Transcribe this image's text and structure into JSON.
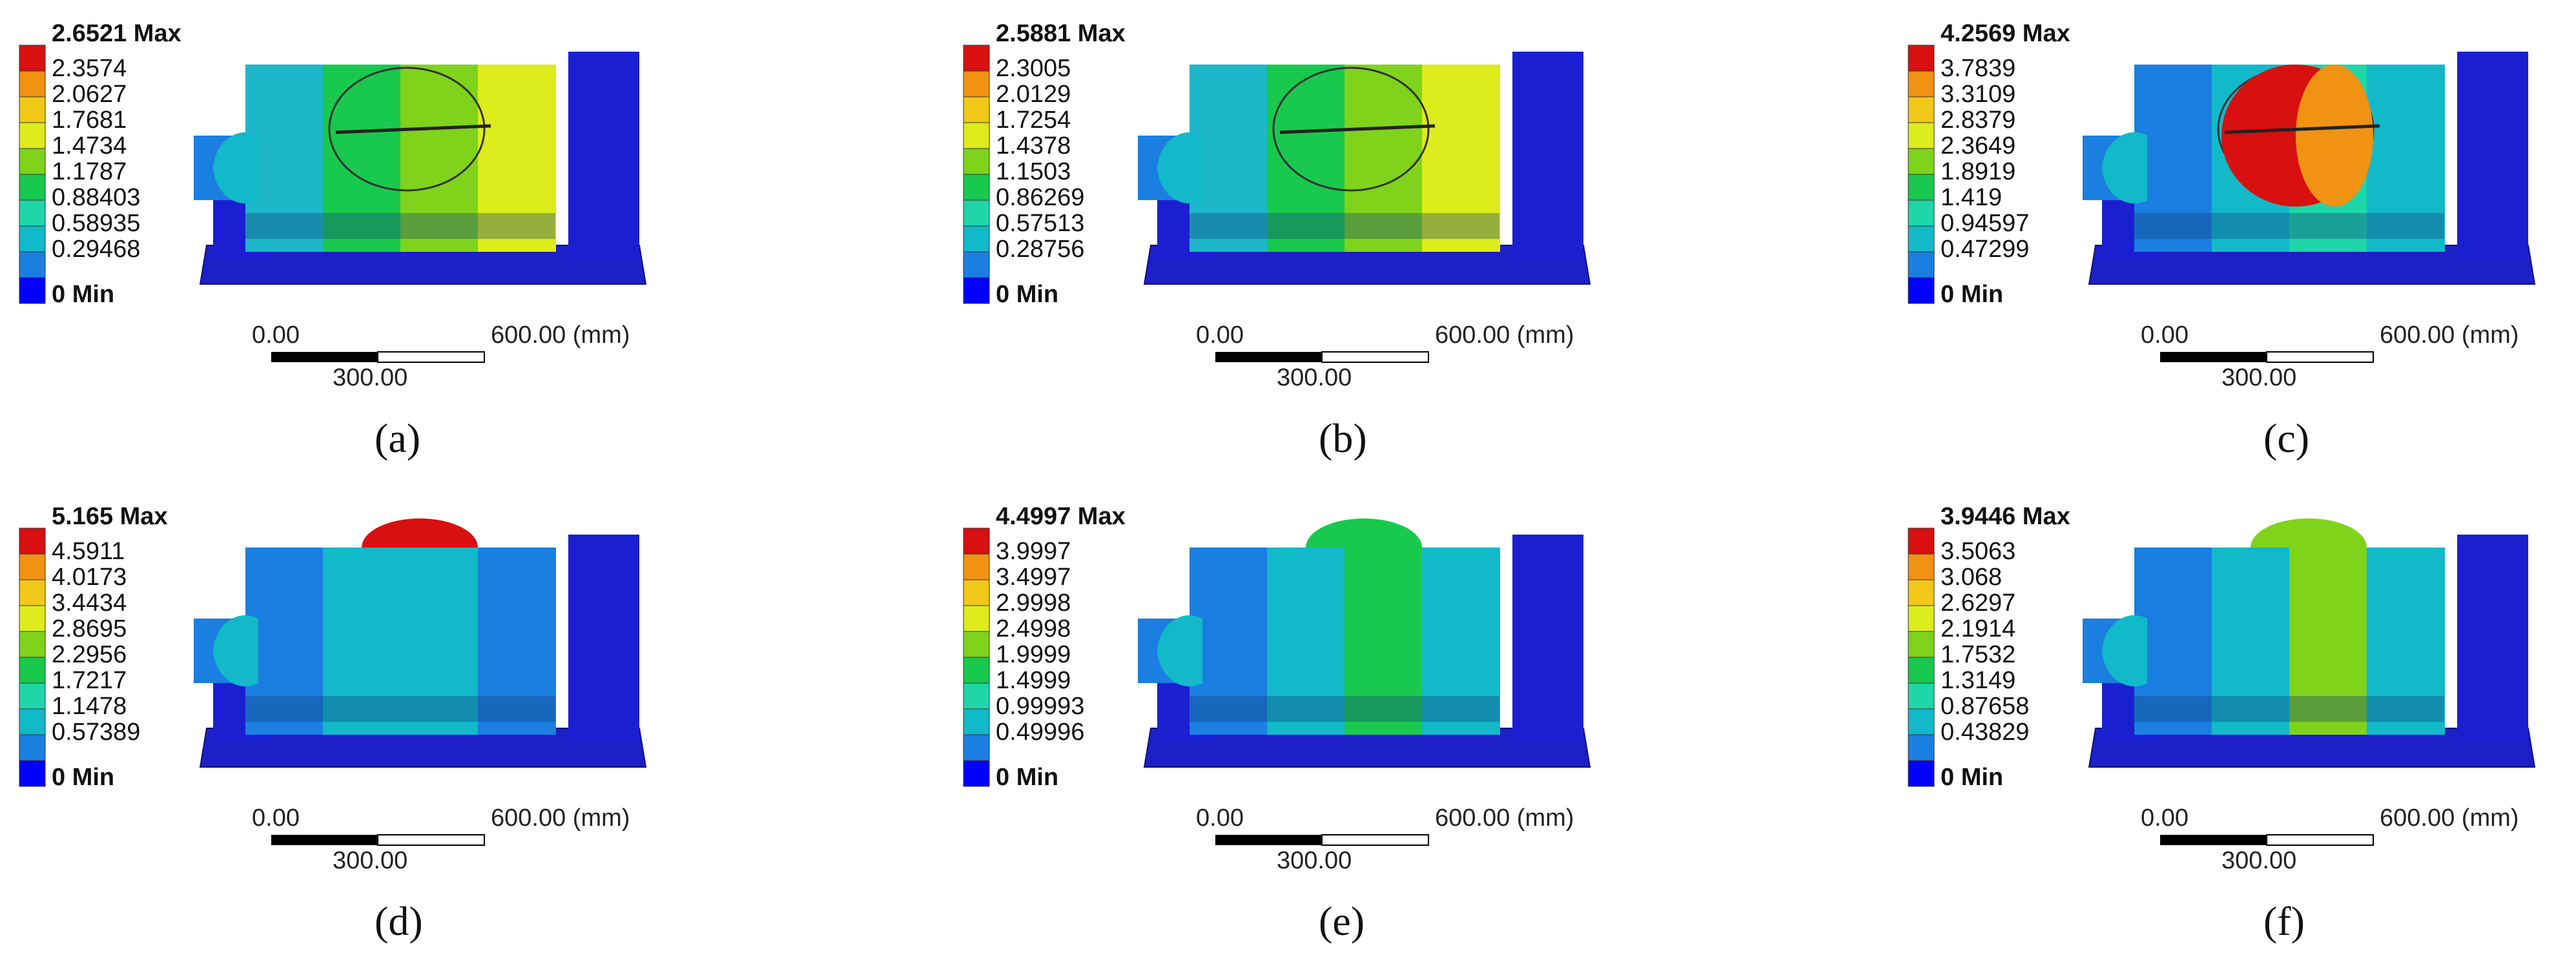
{
  "legend_colors": [
    "#0000ff",
    "#1a7fe0",
    "#12b9c9",
    "#1fd6a8",
    "#19c94d",
    "#7fd31b",
    "#dcec1c",
    "#f1c818",
    "#f09212",
    "#d81010"
  ],
  "scale_bar": {
    "left_label": "0.00",
    "right_label": "600.00 (mm)",
    "mid_label": "300.00"
  },
  "panels": [
    {
      "caption": "(a)",
      "legend": [
        "2.6521 Max",
        "2.3574",
        "2.0627",
        "1.7681",
        "1.4734",
        "1.1787",
        "0.88403",
        "0.58935",
        "0.29468",
        "0 Min"
      ]
    },
    {
      "caption": "(b)",
      "legend": [
        "2.5881 Max",
        "2.3005",
        "2.0129",
        "1.7254",
        "1.4378",
        "1.1503",
        "0.86269",
        "0.57513",
        "0.28756",
        "0 Min"
      ]
    },
    {
      "caption": "(c)",
      "legend": [
        "4.2569 Max",
        "3.7839",
        "3.3109",
        "2.8379",
        "2.3649",
        "1.8919",
        "1.419",
        "0.94597",
        "0.47299",
        "0 Min"
      ]
    },
    {
      "caption": "(d)",
      "legend": [
        "5.165 Max",
        "4.5911",
        "4.0173",
        "3.4434",
        "2.8695",
        "2.2956",
        "1.7217",
        "1.1478",
        "0.57389",
        "0 Min"
      ]
    },
    {
      "caption": "(e)",
      "legend": [
        "4.4997 Max",
        "3.9997",
        "3.4997",
        "2.9998",
        "2.4998",
        "1.9999",
        "1.4999",
        "0.99993",
        "0.49996",
        "0 Min"
      ]
    },
    {
      "caption": "(f)",
      "legend": [
        "3.9446 Max",
        "3.5063",
        "3.068",
        "2.6297",
        "2.1914",
        "1.7532",
        "1.3149",
        "0.87658",
        "0.43829",
        "0 Min"
      ]
    }
  ]
}
